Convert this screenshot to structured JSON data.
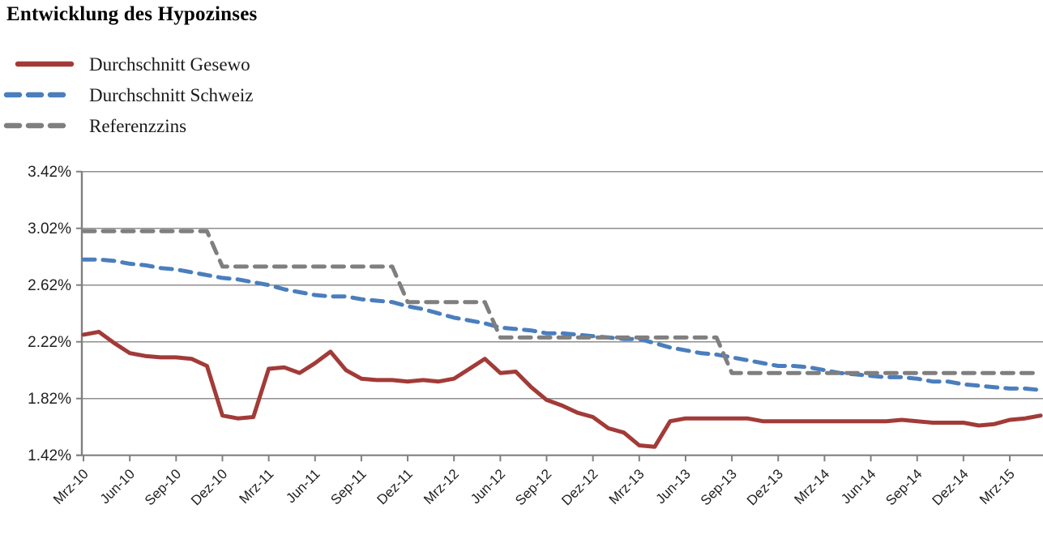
{
  "title": "Entwicklung des Hypozinses",
  "legend": {
    "items": [
      {
        "label": "Durchschnitt Gesewo",
        "color": "#A23B38",
        "style": "solid"
      },
      {
        "label": "Durchschnitt Schweiz",
        "color": "#4A7EBD",
        "style": "dashed"
      },
      {
        "label": "Referenzzins",
        "color": "#7F7F7F",
        "style": "dashed"
      }
    ]
  },
  "axes": {
    "y_tick_labels": [
      "3.42%",
      "3.02%",
      "2.62%",
      "2.22%",
      "1.82%",
      "1.42%"
    ],
    "x_tick_labels": [
      "Mrz-10",
      "Jun-10",
      "Sep-10",
      "Dez-10",
      "Mrz-11",
      "Jun-11",
      "Sep-11",
      "Dez-11",
      "Mrz-12",
      "Jun-12",
      "Sep-12",
      "Dez-12",
      "Mrz-13",
      "Jun-13",
      "Sep-13",
      "Dez-13",
      "Mrz-14",
      "Jun-14",
      "Sep-14",
      "Dez-14",
      "Mrz-15"
    ]
  },
  "colors": {
    "gesewo": "#A23B38",
    "schweiz": "#4A7EBD",
    "referenzzins": "#7F7F7F",
    "grid": "#8F8F8F",
    "axis": "#808080",
    "text": "#1f1f1f"
  },
  "chart_data": {
    "type": "line",
    "title": "Entwicklung des Hypozinses",
    "x_unit": "month",
    "x": [
      "Mrz-10",
      "Apr-10",
      "Mai-10",
      "Jun-10",
      "Jul-10",
      "Aug-10",
      "Sep-10",
      "Okt-10",
      "Nov-10",
      "Dez-10",
      "Jan-11",
      "Feb-11",
      "Mrz-11",
      "Apr-11",
      "Mai-11",
      "Jun-11",
      "Jul-11",
      "Aug-11",
      "Sep-11",
      "Okt-11",
      "Nov-11",
      "Dez-11",
      "Jan-12",
      "Feb-12",
      "Mrz-12",
      "Apr-12",
      "Mai-12",
      "Jun-12",
      "Jul-12",
      "Aug-12",
      "Sep-12",
      "Okt-12",
      "Nov-12",
      "Dez-12",
      "Jan-13",
      "Feb-13",
      "Mrz-13",
      "Apr-13",
      "Mai-13",
      "Jun-13",
      "Jul-13",
      "Aug-13",
      "Sep-13",
      "Okt-13",
      "Nov-13",
      "Dez-13",
      "Jan-14",
      "Feb-14",
      "Mrz-14",
      "Apr-14",
      "Mai-14",
      "Jun-14",
      "Jul-14",
      "Aug-14",
      "Sep-14",
      "Okt-14",
      "Nov-14",
      "Dez-14",
      "Jan-15",
      "Feb-15",
      "Mrz-15",
      "Apr-15",
      "Mai-15"
    ],
    "x_axis_tick_every": 3,
    "x_axis_ticks": [
      "Mrz-10",
      "Jun-10",
      "Sep-10",
      "Dez-10",
      "Mrz-11",
      "Jun-11",
      "Sep-11",
      "Dez-11",
      "Mrz-12",
      "Jun-12",
      "Sep-12",
      "Dez-12",
      "Mrz-13",
      "Jun-13",
      "Sep-13",
      "Dez-13",
      "Mrz-14",
      "Jun-14",
      "Sep-14",
      "Dez-14",
      "Mrz-15"
    ],
    "y_axis_ticks": [
      "3.42%",
      "3.02%",
      "2.62%",
      "2.22%",
      "1.82%",
      "1.42%"
    ],
    "y_tick_values": [
      3.42,
      3.02,
      2.62,
      2.22,
      1.82,
      1.42
    ],
    "ylim": [
      1.42,
      3.42
    ],
    "grid": true,
    "legend_position": "top-left",
    "series": [
      {
        "name": "Durchschnitt Gesewo",
        "color": "#A23B38",
        "line_style": "solid",
        "values": [
          2.27,
          2.29,
          2.21,
          2.14,
          2.12,
          2.11,
          2.11,
          2.1,
          2.05,
          1.7,
          1.68,
          1.69,
          2.03,
          2.04,
          2.0,
          2.07,
          2.15,
          2.02,
          1.96,
          1.95,
          1.95,
          1.94,
          1.95,
          1.94,
          1.96,
          2.03,
          2.1,
          2.0,
          2.01,
          1.9,
          1.81,
          1.77,
          1.72,
          1.69,
          1.61,
          1.58,
          1.49,
          1.48,
          1.66,
          1.68,
          1.68,
          1.68,
          1.68,
          1.68,
          1.66,
          1.66,
          1.66,
          1.66,
          1.66,
          1.66,
          1.66,
          1.66,
          1.66,
          1.67,
          1.66,
          1.65,
          1.65,
          1.65,
          1.63,
          1.64,
          1.67,
          1.68,
          1.7
        ]
      },
      {
        "name": "Durchschnitt Schweiz",
        "color": "#4A7EBD",
        "line_style": "dashed",
        "values": [
          2.8,
          2.8,
          2.79,
          2.77,
          2.76,
          2.74,
          2.73,
          2.71,
          2.69,
          2.67,
          2.66,
          2.64,
          2.62,
          2.59,
          2.57,
          2.55,
          2.54,
          2.54,
          2.52,
          2.51,
          2.5,
          2.47,
          2.45,
          2.42,
          2.39,
          2.37,
          2.35,
          2.32,
          2.31,
          2.3,
          2.28,
          2.28,
          2.27,
          2.26,
          2.25,
          2.24,
          2.24,
          2.21,
          2.18,
          2.16,
          2.14,
          2.13,
          2.11,
          2.09,
          2.07,
          2.05,
          2.05,
          2.04,
          2.02,
          2.0,
          1.99,
          1.98,
          1.97,
          1.97,
          1.96,
          1.94,
          1.94,
          1.92,
          1.91,
          1.9,
          1.89,
          1.89,
          1.88
        ]
      },
      {
        "name": "Referenzzins",
        "color": "#7F7F7F",
        "line_style": "dashed",
        "values": [
          3.0,
          3.0,
          3.0,
          3.0,
          3.0,
          3.0,
          3.0,
          3.0,
          3.0,
          2.75,
          2.75,
          2.75,
          2.75,
          2.75,
          2.75,
          2.75,
          2.75,
          2.75,
          2.75,
          2.75,
          2.75,
          2.5,
          2.5,
          2.5,
          2.5,
          2.5,
          2.5,
          2.25,
          2.25,
          2.25,
          2.25,
          2.25,
          2.25,
          2.25,
          2.25,
          2.25,
          2.25,
          2.25,
          2.25,
          2.25,
          2.25,
          2.25,
          2.0,
          2.0,
          2.0,
          2.0,
          2.0,
          2.0,
          2.0,
          2.0,
          2.0,
          2.0,
          2.0,
          2.0,
          2.0,
          2.0,
          2.0,
          2.0,
          2.0,
          2.0,
          2.0,
          2.0,
          2.0
        ]
      }
    ]
  }
}
